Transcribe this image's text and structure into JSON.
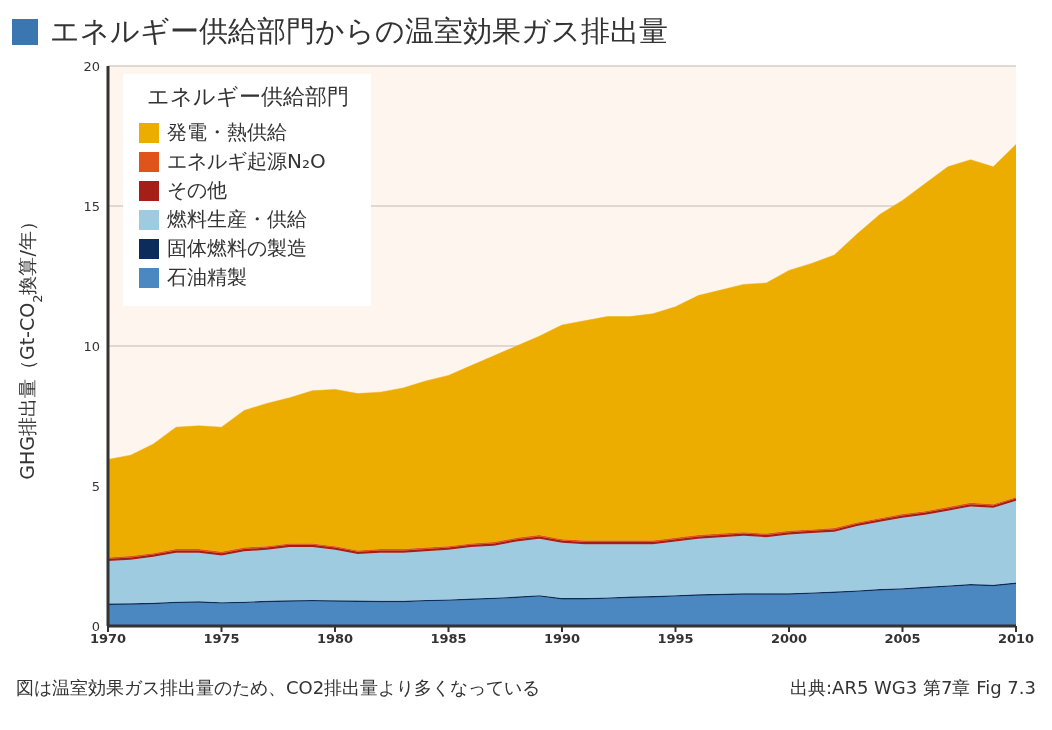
{
  "chart_data": {
    "type": "area",
    "stacked": true,
    "title": "エネルギー供給部門からの温室効果ガス排出量",
    "ylabel": "GHG排出量（Gt-CO$_{2}$換算/年）",
    "legend_title": "エネルギー供給部門",
    "legend": "top left",
    "grid": "y",
    "x": [
      1970,
      1971,
      1972,
      1973,
      1974,
      1975,
      1976,
      1977,
      1978,
      1979,
      1980,
      1981,
      1982,
      1983,
      1984,
      1985,
      1986,
      1987,
      1988,
      1989,
      1990,
      1991,
      1992,
      1993,
      1994,
      1995,
      1996,
      1997,
      1998,
      1999,
      2000,
      2001,
      2002,
      2003,
      2004,
      2005,
      2006,
      2007,
      2008,
      2009,
      2010
    ],
    "xlim": [
      1970,
      2010
    ],
    "xticks": [
      1970,
      1975,
      1980,
      1985,
      1990,
      1995,
      2000,
      2005,
      2010
    ],
    "ylim": [
      0,
      20
    ],
    "yticks": [
      0,
      5,
      10,
      15,
      20
    ],
    "series": [
      {
        "name": "石油精製",
        "color": "#4b87c1",
        "values": [
          0.75,
          0.76,
          0.78,
          0.82,
          0.83,
          0.8,
          0.82,
          0.85,
          0.87,
          0.88,
          0.87,
          0.86,
          0.85,
          0.85,
          0.88,
          0.9,
          0.93,
          0.96,
          1.0,
          1.05,
          0.95,
          0.95,
          0.97,
          1.0,
          1.02,
          1.05,
          1.08,
          1.1,
          1.12,
          1.12,
          1.12,
          1.15,
          1.18,
          1.22,
          1.27,
          1.3,
          1.35,
          1.4,
          1.45,
          1.42,
          1.5
        ]
      },
      {
        "name": "固体燃料の製造",
        "color": "#0c2d5c",
        "values": [
          0.05,
          0.05,
          0.05,
          0.05,
          0.05,
          0.05,
          0.05,
          0.05,
          0.05,
          0.05,
          0.05,
          0.05,
          0.05,
          0.05,
          0.05,
          0.05,
          0.05,
          0.05,
          0.05,
          0.05,
          0.05,
          0.05,
          0.05,
          0.05,
          0.05,
          0.05,
          0.05,
          0.05,
          0.05,
          0.05,
          0.05,
          0.05,
          0.05,
          0.05,
          0.05,
          0.05,
          0.05,
          0.05,
          0.05,
          0.05,
          0.05
        ]
      },
      {
        "name": "燃料生産・供給",
        "color": "#9fcbe0",
        "values": [
          1.52,
          1.56,
          1.64,
          1.75,
          1.74,
          1.67,
          1.8,
          1.82,
          1.9,
          1.89,
          1.8,
          1.66,
          1.72,
          1.72,
          1.74,
          1.77,
          1.84,
          1.86,
          1.97,
          2.02,
          1.97,
          1.92,
          1.9,
          1.87,
          1.85,
          1.92,
          1.99,
          2.02,
          2.05,
          2.0,
          2.1,
          2.12,
          2.14,
          2.3,
          2.4,
          2.52,
          2.57,
          2.67,
          2.77,
          2.75,
          2.92
        ]
      },
      {
        "name": "その他",
        "color": "#a51e18",
        "values": [
          0.08,
          0.08,
          0.08,
          0.08,
          0.08,
          0.08,
          0.08,
          0.08,
          0.08,
          0.08,
          0.08,
          0.08,
          0.08,
          0.08,
          0.08,
          0.08,
          0.08,
          0.08,
          0.08,
          0.08,
          0.08,
          0.08,
          0.08,
          0.08,
          0.08,
          0.08,
          0.08,
          0.08,
          0.08,
          0.08,
          0.08,
          0.08,
          0.08,
          0.08,
          0.08,
          0.08,
          0.08,
          0.08,
          0.08,
          0.08,
          0.08
        ]
      },
      {
        "name": "エネルギ起源N₂O",
        "color": "#e0531b",
        "values": [
          0.05,
          0.05,
          0.05,
          0.05,
          0.05,
          0.05,
          0.05,
          0.05,
          0.05,
          0.05,
          0.05,
          0.05,
          0.05,
          0.05,
          0.05,
          0.05,
          0.05,
          0.05,
          0.05,
          0.05,
          0.05,
          0.05,
          0.05,
          0.05,
          0.05,
          0.05,
          0.05,
          0.05,
          0.05,
          0.05,
          0.05,
          0.05,
          0.05,
          0.05,
          0.05,
          0.05,
          0.05,
          0.05,
          0.05,
          0.05,
          0.05
        ]
      },
      {
        "name": "発電・熱供給",
        "color": "#edad00",
        "values": [
          3.5,
          3.6,
          3.9,
          4.35,
          4.4,
          4.45,
          4.9,
          5.1,
          5.2,
          5.45,
          5.6,
          5.6,
          5.6,
          5.75,
          5.95,
          6.1,
          6.35,
          6.65,
          6.85,
          7.1,
          7.65,
          7.85,
          8.0,
          8.0,
          8.1,
          8.25,
          8.55,
          8.7,
          8.85,
          8.95,
          9.3,
          9.5,
          9.75,
          10.3,
          10.85,
          11.2,
          11.7,
          12.15,
          12.25,
          12.05,
          12.6
        ]
      }
    ],
    "annotations": [
      "図は温室効果ガス排出量のため、CO2排出量より多くなっている",
      "出典:AR5 WG3 第7章 Fig 7.3"
    ]
  }
}
